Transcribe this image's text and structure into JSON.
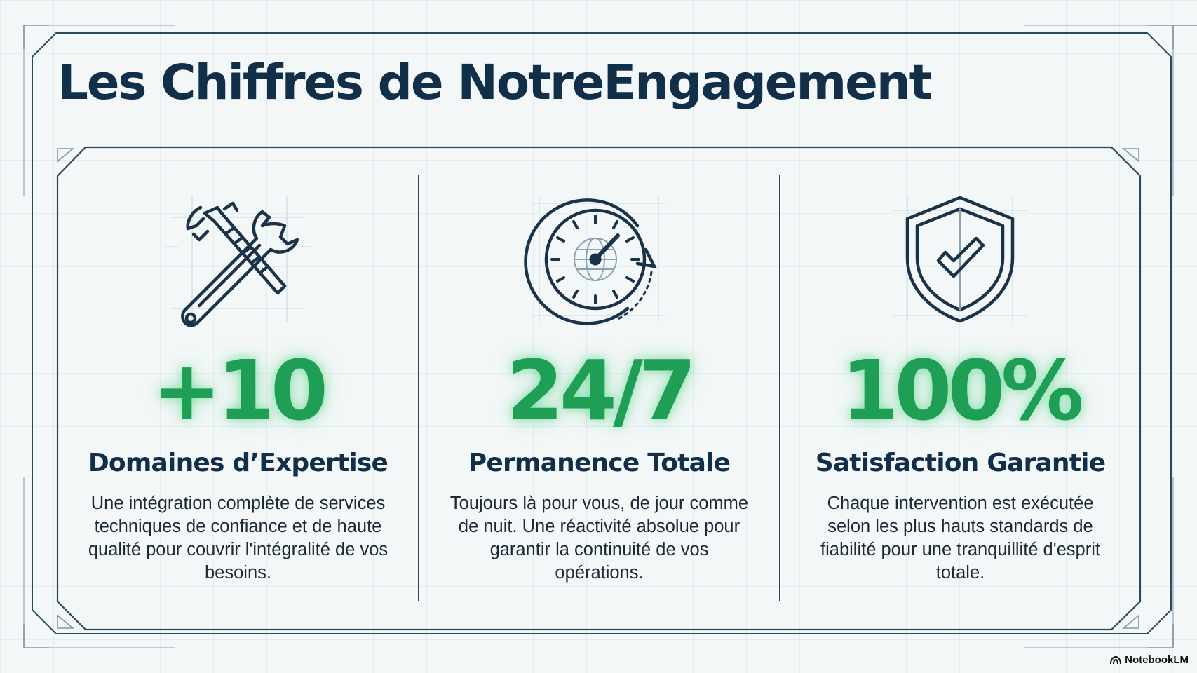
{
  "title": "Les Chiffres de NotreEngagement",
  "accent_color": "#1f9e55",
  "ink_color": "#112f48",
  "stats": [
    {
      "icon": "tools-icon",
      "value": "+10",
      "label": "Domaines d’Expertise",
      "description": "Une intégration complète de services techniques de confiance et de haute qualité pour couvrir l'intégralité de vos besoins."
    },
    {
      "icon": "clock-icon",
      "value": "24/7",
      "label": "Permanence Totale",
      "description": "Toujours là pour vous, de jour comme de nuit. Une réactivité absolue pour garantir la continuité de vos opérations."
    },
    {
      "icon": "shield-check-icon",
      "value": "100%",
      "label": "Satisfaction Garantie",
      "description": "Chaque intervention est exécutée selon les plus hauts standards de fiabilité pour une tranquillité d'esprit totale."
    }
  ],
  "brand": "NotebookLM"
}
